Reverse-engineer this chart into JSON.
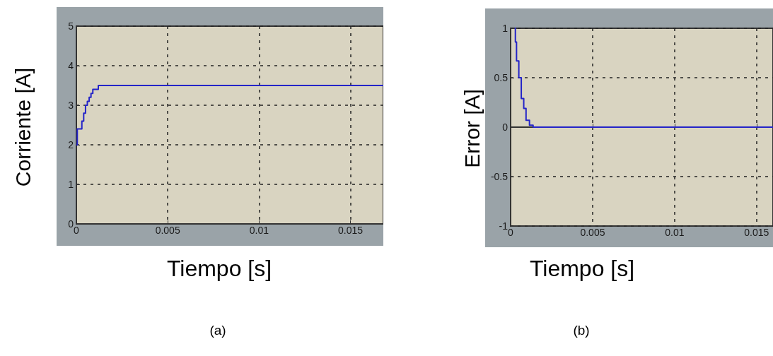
{
  "chart_data": [
    {
      "type": "step",
      "xlabel": "Tiempo [s]",
      "ylabel": "Corriente [A]",
      "annotations": [
        "(a)"
      ],
      "series": [
        {
          "color": "#2424c8",
          "x": [
            0,
            5e-05,
            0.0003,
            0.0004,
            0.0005,
            0.0006,
            0.0007,
            0.0008,
            0.0009,
            0.0012,
            0.0168
          ],
          "values": [
            2.0,
            2.4,
            2.6,
            2.8,
            3.0,
            3.1,
            3.2,
            3.3,
            3.4,
            3.5,
            3.5
          ]
        }
      ],
      "xlim": [
        0,
        0.0168
      ],
      "xticks": [
        0,
        0.005,
        0.01,
        0.015
      ],
      "ylim": [
        0,
        5
      ],
      "yticks": [
        0,
        1,
        2,
        3,
        4,
        5
      ],
      "grid": true,
      "line_style": "solid",
      "marker": "none"
    },
    {
      "type": "step",
      "xlabel": "Tiempo [s]",
      "ylabel": "Error [A]",
      "annotations": [
        "(b)"
      ],
      "series": [
        {
          "color": "#2424c8",
          "x": [
            0.00025,
            0.00029,
            0.00036,
            0.0005,
            0.00065,
            0.0008,
            0.00094,
            0.00115,
            0.00137,
            0.016
          ],
          "values": [
            1,
            0.86,
            0.67,
            0.5,
            0.29,
            0.19,
            0.07,
            0.02,
            0,
            0
          ]
        }
      ],
      "xlim": [
        0,
        0.016
      ],
      "xticks": [
        0,
        0.005,
        0.01,
        0.015
      ],
      "ylim": [
        -1,
        1
      ],
      "yticks": [
        -1,
        -0.5,
        0,
        0.5,
        1
      ],
      "grid": true,
      "line_style": "solid",
      "marker": "none"
    }
  ]
}
